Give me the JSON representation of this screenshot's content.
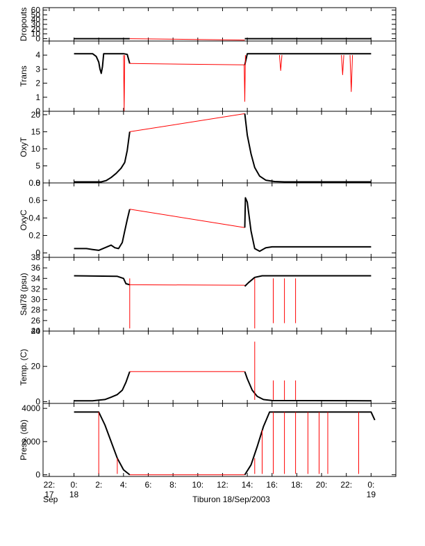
{
  "figure": {
    "xlabel": "Tiburon 18/Sep/2003",
    "xticks": [
      {
        "t": -2,
        "lines": [
          "22:",
          "17"
        ]
      },
      {
        "t": 0,
        "lines": [
          "0:",
          "18"
        ]
      },
      {
        "t": 2,
        "lines": [
          "2:"
        ]
      },
      {
        "t": 4,
        "lines": [
          "4:"
        ]
      },
      {
        "t": 6,
        "lines": [
          "6:"
        ]
      },
      {
        "t": 8,
        "lines": [
          "8:"
        ]
      },
      {
        "t": 10,
        "lines": [
          "10:"
        ]
      },
      {
        "t": 12,
        "lines": [
          "12:"
        ]
      },
      {
        "t": 14,
        "lines": [
          "14:"
        ]
      },
      {
        "t": 16,
        "lines": [
          "16:"
        ]
      },
      {
        "t": 18,
        "lines": [
          "18:"
        ]
      },
      {
        "t": 20,
        "lines": [
          "20:"
        ]
      },
      {
        "t": 22,
        "lines": [
          "22:"
        ]
      },
      {
        "t": 24,
        "lines": [
          "0:",
          "19"
        ]
      }
    ],
    "xextra": "Sep",
    "xlim": [
      -2.5,
      26
    ]
  },
  "colors": {
    "data": "#000000",
    "interp": "#ff0000",
    "axis": "#000000"
  },
  "chart_data": [
    {
      "type": "line",
      "ylabel": "Dropouts",
      "ylim": [
        -5,
        65
      ],
      "yticks": [
        0,
        10,
        20,
        30,
        40,
        50,
        60
      ],
      "series": [
        {
          "color": "black",
          "x": [
            0,
            4.5
          ],
          "y": [
            0,
            0
          ]
        },
        {
          "color": "red",
          "x": [
            4.5,
            13.8
          ],
          "y": [
            0,
            -3
          ]
        },
        {
          "color": "black",
          "x": [
            13.8,
            24
          ],
          "y": [
            0,
            0
          ]
        }
      ]
    },
    {
      "type": "line",
      "ylabel": "Trans",
      "ylim": [
        0,
        5
      ],
      "yticks": [
        0,
        1,
        2,
        3,
        4
      ],
      "series": [
        {
          "color": "black",
          "x": [
            0,
            1.5,
            1.8,
            2.0,
            2.1,
            2.2,
            2.3,
            2.4,
            3.5,
            4.0,
            4.3,
            4.5
          ],
          "y": [
            4.1,
            4.1,
            3.9,
            3.5,
            3.0,
            2.7,
            3.2,
            4.1,
            4.1,
            4.1,
            4.05,
            3.4
          ]
        },
        {
          "color": "red",
          "x": [
            4.5,
            13.8
          ],
          "y": [
            3.4,
            3.3
          ]
        },
        {
          "color": "black",
          "x": [
            13.8,
            14.0,
            24
          ],
          "y": [
            3.3,
            4.1,
            4.1
          ]
        },
        {
          "color": "red",
          "x": [
            4.0,
            4.05,
            4.1
          ],
          "y": [
            4.0,
            0.0,
            4.0
          ]
        },
        {
          "color": "red",
          "x": [
            13.75,
            13.8,
            13.85
          ],
          "y": [
            3.3,
            0.7,
            4.0
          ]
        },
        {
          "color": "red",
          "x": [
            22.3,
            22.4,
            22.5
          ],
          "y": [
            4.0,
            1.4,
            4.0
          ]
        },
        {
          "color": "red",
          "x": [
            21.6,
            21.7,
            21.8
          ],
          "y": [
            4.0,
            2.6,
            4.0
          ]
        },
        {
          "color": "red",
          "x": [
            16.6,
            16.7,
            16.8
          ],
          "y": [
            4.0,
            2.9,
            4.0
          ]
        }
      ]
    },
    {
      "type": "line",
      "ylabel": "OxyT",
      "ylim": [
        0,
        21
      ],
      "yticks": [
        0,
        5,
        10,
        15,
        20
      ],
      "series": [
        {
          "color": "black",
          "x": [
            0,
            2.2,
            2.6,
            3.0,
            3.4,
            3.8,
            4.1,
            4.3,
            4.5
          ],
          "y": [
            0.3,
            0.3,
            0.7,
            1.6,
            2.8,
            4.3,
            6.0,
            9.5,
            15.0
          ]
        },
        {
          "color": "red",
          "x": [
            4.5,
            13.8
          ],
          "y": [
            15.0,
            20.3
          ]
        },
        {
          "color": "black",
          "x": [
            13.8,
            14.0,
            14.3,
            14.6,
            15.0,
            15.5,
            16.2,
            17.0,
            24
          ],
          "y": [
            20.3,
            14.0,
            8.5,
            4.5,
            2.0,
            0.8,
            0.4,
            0.3,
            0.3
          ]
        }
      ]
    },
    {
      "type": "line",
      "ylabel": "OxyC",
      "ylim": [
        -0.05,
        0.8
      ],
      "yticks": [
        0.0,
        0.2,
        0.4,
        0.6,
        0.8
      ],
      "series": [
        {
          "color": "black",
          "x": [
            0,
            1.0,
            1.5,
            2.0,
            2.5,
            3.0,
            3.3,
            3.6,
            3.9,
            4.1,
            4.3,
            4.5
          ],
          "y": [
            0.05,
            0.05,
            0.04,
            0.03,
            0.06,
            0.09,
            0.06,
            0.05,
            0.12,
            0.25,
            0.38,
            0.5
          ]
        },
        {
          "color": "red",
          "x": [
            4.5,
            13.8
          ],
          "y": [
            0.5,
            0.29
          ]
        },
        {
          "color": "black",
          "x": [
            13.8,
            13.85,
            14.0,
            14.3,
            14.6,
            15.0,
            15.5,
            16.0,
            24
          ],
          "y": [
            0.29,
            0.63,
            0.58,
            0.25,
            0.05,
            0.02,
            0.06,
            0.07,
            0.07
          ]
        }
      ]
    },
    {
      "type": "line",
      "ylabel": "Sal78 (psu)",
      "ylim": [
        24,
        38
      ],
      "yticks": [
        24,
        26,
        28,
        30,
        32,
        34,
        36,
        38
      ],
      "series": [
        {
          "color": "black",
          "x": [
            0,
            3.5,
            4.0,
            4.2,
            4.5
          ],
          "y": [
            34.5,
            34.4,
            34.0,
            33.0,
            32.8
          ]
        },
        {
          "color": "red",
          "x": [
            4.5,
            13.8
          ],
          "y": [
            32.8,
            32.7
          ]
        },
        {
          "color": "black",
          "x": [
            13.8,
            14.1,
            14.6,
            15.2,
            24
          ],
          "y": [
            32.5,
            33.2,
            34.2,
            34.5,
            34.5
          ]
        },
        {
          "color": "red",
          "x": [
            4.5,
            4.5
          ],
          "y": [
            34.0,
            24.5
          ]
        },
        {
          "color": "red",
          "x": [
            14.6,
            14.6
          ],
          "y": [
            34.0,
            24.5
          ]
        },
        {
          "color": "red",
          "x": [
            16.1,
            16.1
          ],
          "y": [
            34.0,
            25.5
          ]
        },
        {
          "color": "red",
          "x": [
            17.0,
            17.0
          ],
          "y": [
            34.0,
            25.5
          ]
        },
        {
          "color": "red",
          "x": [
            17.9,
            17.9
          ],
          "y": [
            34.0,
            25.5
          ]
        }
      ]
    },
    {
      "type": "line",
      "ylabel": "Temp. (C)",
      "ylim": [
        -1,
        40
      ],
      "yticks": [
        0,
        20,
        40
      ],
      "series": [
        {
          "color": "black",
          "x": [
            0,
            1.5,
            2.5,
            3.0,
            3.5,
            3.9,
            4.2,
            4.5
          ],
          "y": [
            0.5,
            0.5,
            1.2,
            2.5,
            4.0,
            6.5,
            11.0,
            17.0
          ]
        },
        {
          "color": "red",
          "x": [
            4.5,
            13.8
          ],
          "y": [
            17.0,
            17.0
          ]
        },
        {
          "color": "black",
          "x": [
            13.8,
            14.0,
            14.4,
            14.8,
            15.3,
            16.0,
            24
          ],
          "y": [
            17.0,
            13.0,
            6.5,
            3.0,
            1.2,
            0.6,
            0.5
          ]
        },
        {
          "color": "red",
          "x": [
            14.6,
            14.6
          ],
          "y": [
            1.0,
            34.0
          ]
        },
        {
          "color": "red",
          "x": [
            16.1,
            16.1
          ],
          "y": [
            1.0,
            12.0
          ]
        },
        {
          "color": "red",
          "x": [
            17.0,
            17.0
          ],
          "y": [
            1.0,
            12.0
          ]
        },
        {
          "color": "red",
          "x": [
            17.9,
            17.9
          ],
          "y": [
            1.0,
            12.0
          ]
        }
      ]
    },
    {
      "type": "line",
      "ylabel": "Press. (db)",
      "ylim": [
        -100,
        4300
      ],
      "yticks": [
        0,
        2000,
        4000
      ],
      "series": [
        {
          "color": "black",
          "x": [
            0,
            2.0,
            2.5,
            3.0,
            3.5,
            4.0,
            4.5
          ],
          "y": [
            3780,
            3780,
            3000,
            2000,
            1000,
            300,
            0
          ]
        },
        {
          "color": "red",
          "x": [
            4.5,
            13.8
          ],
          "y": [
            0,
            0
          ]
        },
        {
          "color": "black",
          "x": [
            13.8,
            14.3,
            14.8,
            15.3,
            15.8,
            24,
            24.3
          ],
          "y": [
            0,
            600,
            1700,
            2900,
            3780,
            3780,
            3300
          ]
        },
        {
          "color": "red",
          "x": [
            2.0,
            2.0
          ],
          "y": [
            3780,
            50
          ]
        },
        {
          "color": "red",
          "x": [
            3.5,
            3.5
          ],
          "y": [
            1000,
            50
          ]
        },
        {
          "color": "red",
          "x": [
            14.6,
            14.6
          ],
          "y": [
            1000,
            50
          ]
        },
        {
          "color": "red",
          "x": [
            15.2,
            15.2
          ],
          "y": [
            2700,
            50
          ]
        },
        {
          "color": "red",
          "x": [
            16.1,
            16.1
          ],
          "y": [
            3780,
            50
          ]
        },
        {
          "color": "red",
          "x": [
            17.0,
            17.0
          ],
          "y": [
            3780,
            50
          ]
        },
        {
          "color": "red",
          "x": [
            17.9,
            17.9
          ],
          "y": [
            3780,
            50
          ]
        },
        {
          "color": "red",
          "x": [
            18.9,
            18.9
          ],
          "y": [
            3780,
            50
          ]
        },
        {
          "color": "red",
          "x": [
            19.8,
            19.8
          ],
          "y": [
            3780,
            50
          ]
        },
        {
          "color": "red",
          "x": [
            20.5,
            20.5
          ],
          "y": [
            3780,
            50
          ]
        },
        {
          "color": "red",
          "x": [
            23.0,
            23.0
          ],
          "y": [
            3780,
            50
          ]
        }
      ]
    }
  ]
}
